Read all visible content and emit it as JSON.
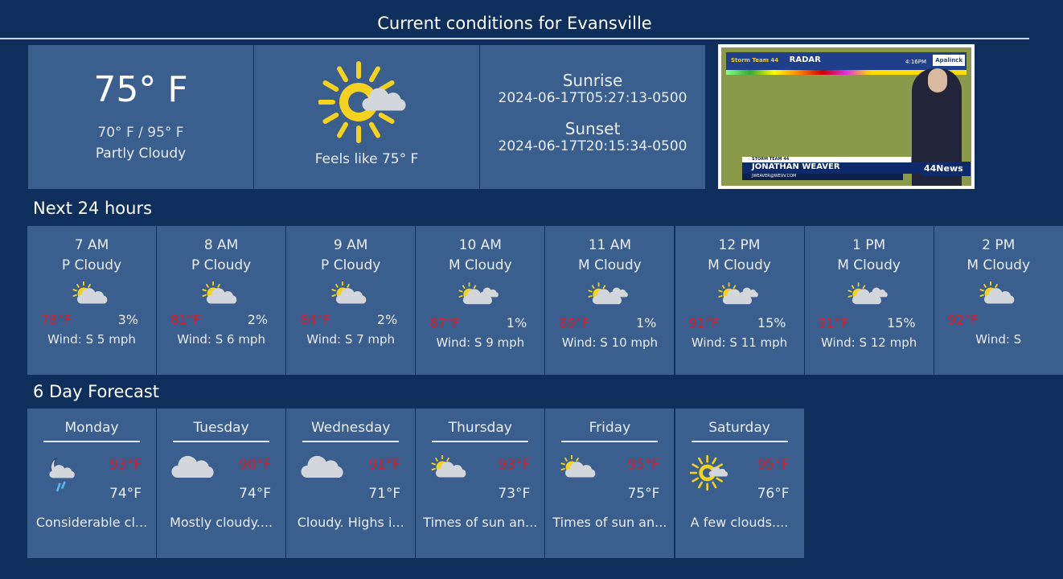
{
  "header": {
    "title": "Current conditions for Evansville"
  },
  "current": {
    "temp": "75° F",
    "range": "70° F / 95° F",
    "condition": "Partly Cloudy",
    "icon": "partly-cloudy-icon",
    "feels_like": "Feels like 75° F",
    "sunrise_label": "Sunrise",
    "sunrise": "2024-06-17T05:27:13-0500",
    "sunset_label": "Sunset",
    "sunset": "2024-06-17T20:15:34-0500"
  },
  "video": {
    "graphic_title": "RADAR",
    "time": "4:16PM",
    "brand": "Storm Team 44",
    "lower_third_tag": "STORM TEAM 44",
    "presenter": "JONATHAN WEAVER",
    "email": "JWEAVER@WEVV.COM",
    "channel": "44News",
    "sponsor": "Apalinck"
  },
  "colors": {
    "background": "#0e2f5c",
    "card": "#3a5f8f",
    "high_temp": "#d4202c",
    "sun": "#f5d21e",
    "cloud": "#d3d6da"
  },
  "hourly": {
    "title": "Next 24 hours",
    "items": [
      {
        "time": "7 AM",
        "cond": "P Cloudy",
        "icon": "partly-cloudy-icon",
        "temp": "78°F",
        "precip": "3%",
        "wind": "Wind: S 5 mph"
      },
      {
        "time": "8 AM",
        "cond": "P Cloudy",
        "icon": "partly-cloudy-icon",
        "temp": "81°F",
        "precip": "2%",
        "wind": "Wind: S 6 mph"
      },
      {
        "time": "9 AM",
        "cond": "P Cloudy",
        "icon": "partly-cloudy-icon",
        "temp": "84°F",
        "precip": "2%",
        "wind": "Wind: S 7 mph"
      },
      {
        "time": "10 AM",
        "cond": "M Cloudy",
        "icon": "mostly-cloudy-icon",
        "temp": "87°F",
        "precip": "1%",
        "wind": "Wind: S 9 mph"
      },
      {
        "time": "11 AM",
        "cond": "M Cloudy",
        "icon": "mostly-cloudy-icon",
        "temp": "89°F",
        "precip": "1%",
        "wind": "Wind: S 10 mph"
      },
      {
        "time": "12 PM",
        "cond": "M Cloudy",
        "icon": "mostly-cloudy-icon",
        "temp": "91°F",
        "precip": "15%",
        "wind": "Wind: S 11 mph"
      },
      {
        "time": "1 PM",
        "cond": "M Cloudy",
        "icon": "mostly-cloudy-icon",
        "temp": "91°F",
        "precip": "15%",
        "wind": "Wind: S 12 mph"
      },
      {
        "time": "2 PM",
        "cond": "M Cloudy",
        "icon": "partly-cloudy-icon",
        "temp": "92°F",
        "precip": "",
        "wind": "Wind: S"
      }
    ]
  },
  "daily": {
    "title": "6 Day Forecast",
    "items": [
      {
        "day": "Monday",
        "icon": "night-rain-icon",
        "hi": "93°F",
        "lo": "74°F",
        "desc": "Considerable cl..."
      },
      {
        "day": "Tuesday",
        "icon": "cloudy-icon",
        "hi": "90°F",
        "lo": "74°F",
        "desc": "Mostly cloudy...."
      },
      {
        "day": "Wednesday",
        "icon": "cloudy-icon",
        "hi": "91°F",
        "lo": "71°F",
        "desc": "Cloudy. Highs i..."
      },
      {
        "day": "Thursday",
        "icon": "partly-cloudy-icon",
        "hi": "93°F",
        "lo": "73°F",
        "desc": "Times of sun an..."
      },
      {
        "day": "Friday",
        "icon": "partly-cloudy-icon",
        "hi": "95°F",
        "lo": "75°F",
        "desc": "Times of sun an..."
      },
      {
        "day": "Saturday",
        "icon": "sun-cloud-icon",
        "hi": "95°F",
        "lo": "76°F",
        "desc": "A few clouds...."
      }
    ]
  }
}
